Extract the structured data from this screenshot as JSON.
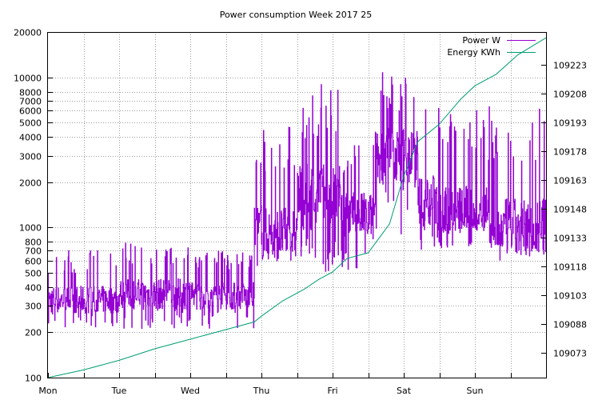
{
  "chart_data": {
    "type": "line",
    "title": "Power consumption Week 2017 25",
    "x": {
      "categories": [
        "Mon",
        "Tue",
        "Wed",
        "Thu",
        "Fri",
        "Sat",
        "Sun"
      ],
      "range_days": [
        0,
        7
      ]
    },
    "y_left": {
      "scale": "log",
      "range": [
        100,
        20000
      ],
      "ticks": [
        100,
        200,
        300,
        400,
        500,
        600,
        700,
        800,
        1000,
        2000,
        3000,
        4000,
        5000,
        6000,
        7000,
        8000,
        10000,
        20000
      ],
      "tick_labels": [
        "100",
        "200",
        "300",
        "400",
        "500",
        "600",
        "700",
        "800",
        "1000",
        "2000",
        "3000",
        "4000",
        "5000",
        "6000",
        "7000",
        "8000",
        "10000",
        "20000"
      ]
    },
    "y_right": {
      "range": [
        109060,
        109240
      ],
      "ticks": [
        109073,
        109088,
        109103,
        109118,
        109133,
        109148,
        109163,
        109178,
        109193,
        109208,
        109223
      ],
      "tick_labels": [
        "109073",
        "109088",
        "109103",
        "109118",
        "109133",
        "109148",
        "109163",
        "109178",
        "109193",
        "109208",
        "109223"
      ]
    },
    "grid": true,
    "legend": "top-right",
    "series": [
      {
        "name": "Power W",
        "axis": "left",
        "color": "#9400d3",
        "segments": [
          {
            "t": [
              0.0,
              1.0
            ],
            "low": 210,
            "high": 700,
            "base": 330
          },
          {
            "t": [
              1.0,
              2.0
            ],
            "low": 210,
            "high": 800,
            "base": 360
          },
          {
            "t": [
              2.0,
              2.9
            ],
            "low": 210,
            "high": 700,
            "base": 350
          },
          {
            "t": [
              2.9,
              3.0
            ],
            "low": 240,
            "high": 4000,
            "base": 900
          },
          {
            "t": [
              3.0,
              3.5
            ],
            "low": 500,
            "high": 5200,
            "base": 900
          },
          {
            "t": [
              3.5,
              4.2
            ],
            "low": 500,
            "high": 9000,
            "base": 1600
          },
          {
            "t": [
              4.2,
              4.6
            ],
            "low": 520,
            "high": 4000,
            "base": 1200
          },
          {
            "t": [
              4.6,
              5.2
            ],
            "low": 900,
            "high": 11000,
            "base": 3000
          },
          {
            "t": [
              5.2,
              5.5
            ],
            "low": 700,
            "high": 7000,
            "base": 1500
          },
          {
            "t": [
              5.5,
              6.2
            ],
            "low": 700,
            "high": 6000,
            "base": 1300
          },
          {
            "t": [
              6.2,
              7.0
            ],
            "low": 520,
            "high": 6500,
            "base": 1000
          }
        ]
      },
      {
        "name": "Energy KWh",
        "axis": "right",
        "color": "#009e73",
        "points": [
          [
            0.0,
            109060
          ],
          [
            0.5,
            109064
          ],
          [
            1.0,
            109069
          ],
          [
            1.5,
            109075
          ],
          [
            2.0,
            109080
          ],
          [
            2.5,
            109085
          ],
          [
            2.9,
            109089
          ],
          [
            3.0,
            109092
          ],
          [
            3.3,
            109100
          ],
          [
            3.6,
            109106
          ],
          [
            3.8,
            109111
          ],
          [
            4.0,
            109115
          ],
          [
            4.2,
            109122
          ],
          [
            4.5,
            109125
          ],
          [
            4.8,
            109140
          ],
          [
            5.0,
            109165
          ],
          [
            5.2,
            109183
          ],
          [
            5.5,
            109192
          ],
          [
            5.8,
            109205
          ],
          [
            6.0,
            109212
          ],
          [
            6.3,
            109218
          ],
          [
            6.6,
            109228
          ],
          [
            7.0,
            109237
          ]
        ]
      }
    ]
  }
}
